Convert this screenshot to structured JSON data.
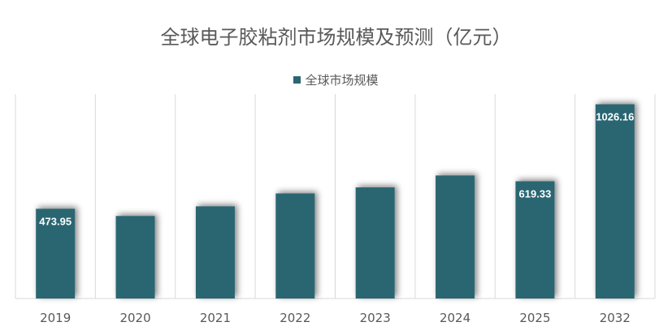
{
  "chart_data": {
    "type": "bar",
    "title": "全球电子胶粘剂市场规模及预测（亿元）",
    "legend": [
      "全球市场规模"
    ],
    "categories": [
      "2019",
      "2020",
      "2021",
      "2022",
      "2023",
      "2024",
      "2025",
      "2032"
    ],
    "series": [
      {
        "name": "全球市场规模",
        "values": [
          473.95,
          436,
          487,
          555,
          587,
          650,
          619.33,
          1026.16
        ],
        "labels": [
          "473.95",
          "",
          "",
          "",
          "",
          "",
          "619.33",
          "1026.16"
        ]
      }
    ],
    "ylim": [
      0,
      1080
    ],
    "bar_color": "#2b6672",
    "xlabel": "",
    "ylabel": ""
  }
}
